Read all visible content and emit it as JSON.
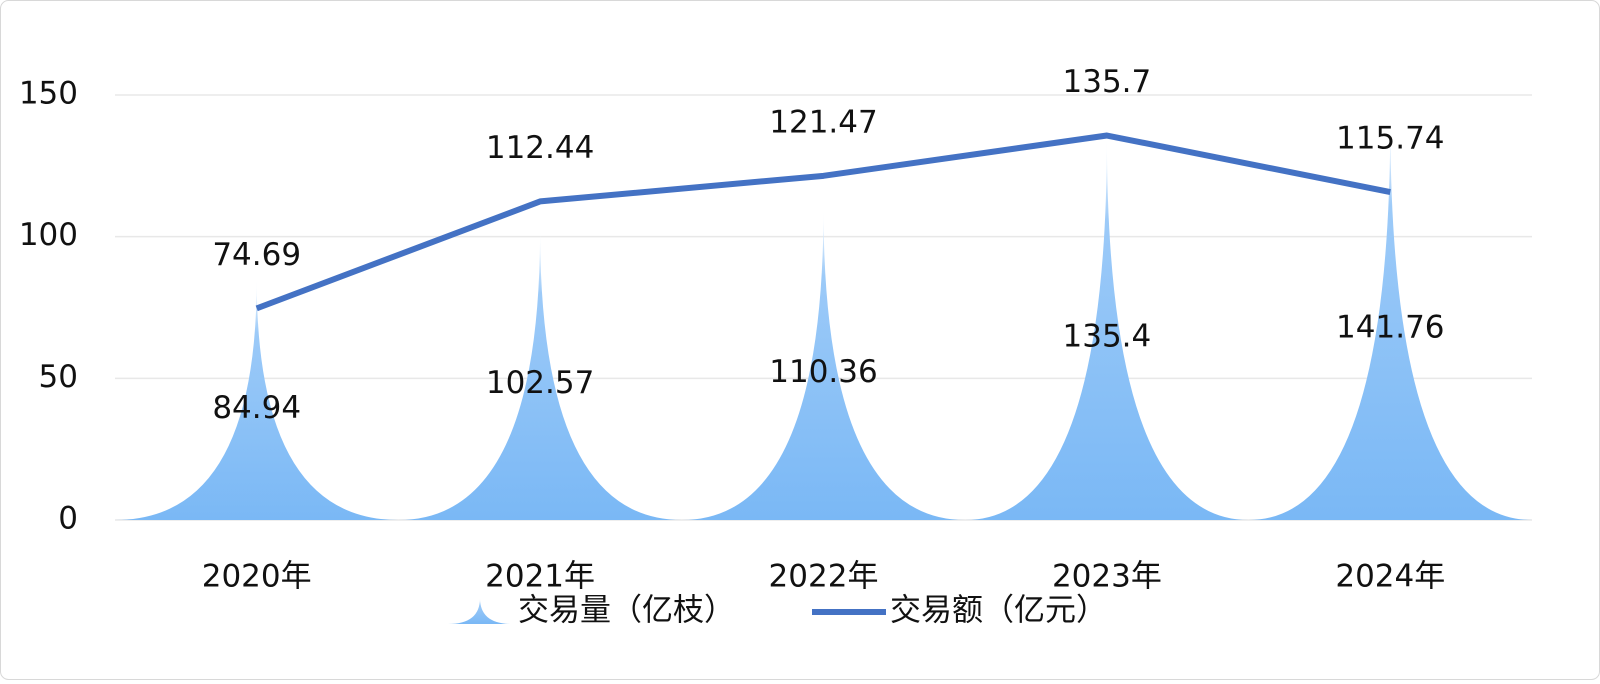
{
  "chart_data": {
    "type": "bar",
    "categories": [
      "2020年",
      "2021年",
      "2022年",
      "2023年",
      "2024年"
    ],
    "series": [
      {
        "name": "交易量（亿枝）",
        "type": "bar",
        "color": "#7ab8f5",
        "values": [
          84.94,
          102.57,
          110.36,
          135.4,
          141.76
        ]
      },
      {
        "name": "交易额（亿元）",
        "type": "line",
        "color": "#4472c4",
        "values": [
          74.69,
          112.44,
          121.47,
          135.7,
          115.74
        ]
      }
    ],
    "ylim": [
      0,
      150
    ],
    "yticks": [
      0,
      50,
      100,
      150
    ],
    "grid": true,
    "legend": "bottom"
  }
}
